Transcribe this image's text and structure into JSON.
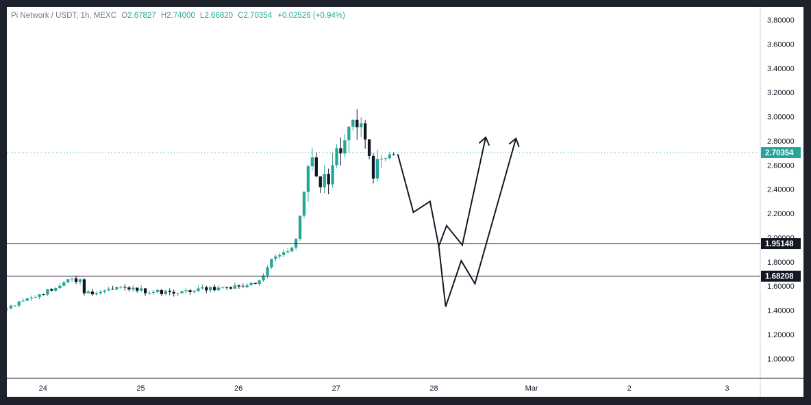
{
  "header": {
    "symbol": "Pi Network / USDT, 1h, MEXC",
    "o_label": "O",
    "o": "2.67827",
    "h_label": "H",
    "h": "2.74000",
    "l_label": "L",
    "l": "2.66820",
    "c_label": "C",
    "c": "2.70354",
    "change": "+0.02526 (+0.94%)"
  },
  "colors": {
    "up": "#26a69a",
    "down": "#131722",
    "background": "#ffffff",
    "frame": "#1e222d",
    "last_price_tag": "#26a69a",
    "level_tag": "#131722"
  },
  "chart_data": {
    "type": "candlestick",
    "timeframe": "1h",
    "ylim": [
      0.92,
      3.86
    ],
    "y_ticks": [
      "3.80000",
      "3.60000",
      "3.40000",
      "3.20000",
      "3.00000",
      "2.80000",
      "2.60000",
      "2.40000",
      "2.20000",
      "2.00000",
      "1.80000",
      "1.60000",
      "1.40000",
      "1.20000",
      "1.00000"
    ],
    "x_ticks": [
      {
        "label": "24",
        "t": 24
      },
      {
        "label": "25",
        "t": 25
      },
      {
        "label": "26",
        "t": 26
      },
      {
        "label": "27",
        "t": 27
      },
      {
        "label": "28",
        "t": 28
      },
      {
        "label": "Mar",
        "t": 29
      },
      {
        "label": "2",
        "t": 30
      },
      {
        "label": "3",
        "t": 31
      }
    ],
    "xlim": [
      23.63,
      31.34
    ],
    "last_price": {
      "value": 2.70354,
      "label": "2.70354"
    },
    "levels": [
      {
        "value": 1.95148,
        "label": "1.95148"
      },
      {
        "value": 1.68208,
        "label": "1.68208"
      }
    ],
    "anchors": [
      {
        "t": 23.63,
        "p": 1.41
      },
      {
        "t": 23.8,
        "p": 1.47
      },
      {
        "t": 24.0,
        "p": 1.53
      },
      {
        "t": 24.15,
        "p": 1.58
      },
      {
        "t": 24.3,
        "p": 1.64
      },
      {
        "t": 24.42,
        "p": 1.66
      },
      {
        "t": 24.43,
        "p": 1.53
      },
      {
        "t": 24.6,
        "p": 1.55
      },
      {
        "t": 24.8,
        "p": 1.58
      },
      {
        "t": 25.0,
        "p": 1.57
      },
      {
        "t": 25.15,
        "p": 1.55
      },
      {
        "t": 25.4,
        "p": 1.55
      },
      {
        "t": 25.6,
        "p": 1.57
      },
      {
        "t": 25.8,
        "p": 1.58
      },
      {
        "t": 26.0,
        "p": 1.6
      },
      {
        "t": 26.2,
        "p": 1.61
      },
      {
        "t": 26.3,
        "p": 1.68
      },
      {
        "t": 26.36,
        "p": 1.8
      },
      {
        "t": 26.5,
        "p": 1.88
      },
      {
        "t": 26.62,
        "p": 1.94
      },
      {
        "t": 26.7,
        "p": 2.3
      },
      {
        "t": 26.78,
        "p": 2.66
      },
      {
        "t": 26.85,
        "p": 2.46
      },
      {
        "t": 26.95,
        "p": 2.48
      },
      {
        "t": 27.05,
        "p": 2.7
      },
      {
        "t": 27.18,
        "p": 2.88
      },
      {
        "t": 27.26,
        "p": 2.96
      },
      {
        "t": 27.35,
        "p": 2.78
      },
      {
        "t": 27.42,
        "p": 2.56
      },
      {
        "t": 27.52,
        "p": 2.62
      },
      {
        "t": 27.59,
        "p": 2.7
      }
    ],
    "projections": [
      [
        {
          "t": 27.63,
          "p": 2.69
        },
        {
          "t": 27.79,
          "p": 2.21
        },
        {
          "t": 27.96,
          "p": 2.3
        },
        {
          "t": 28.05,
          "p": 1.93
        },
        {
          "t": 28.13,
          "p": 2.1
        },
        {
          "t": 28.29,
          "p": 1.94
        },
        {
          "t": 28.53,
          "p": 2.83
        }
      ],
      [
        {
          "t": 28.05,
          "p": 1.93
        },
        {
          "t": 28.12,
          "p": 1.43
        },
        {
          "t": 28.28,
          "p": 1.81
        },
        {
          "t": 28.42,
          "p": 1.62
        },
        {
          "t": 28.84,
          "p": 2.82
        }
      ]
    ]
  }
}
